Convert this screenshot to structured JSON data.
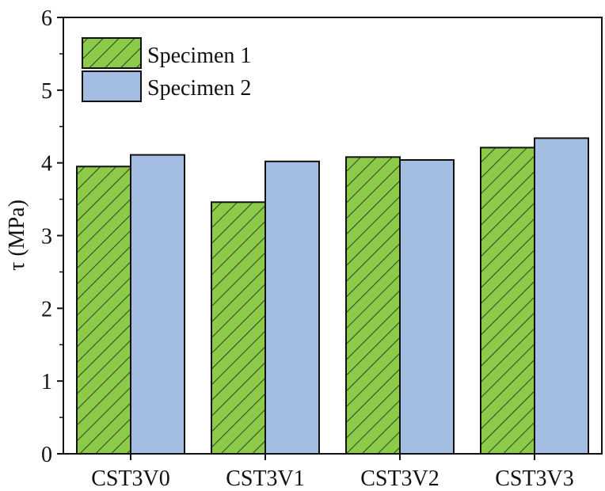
{
  "chart_data": {
    "type": "bar",
    "categories": [
      "CST3V0",
      "CST3V1",
      "CST3V2",
      "CST3V3"
    ],
    "series": [
      {
        "name": "Specimen 1",
        "values": [
          3.95,
          3.46,
          4.08,
          4.21
        ],
        "color": "#8ccb4a",
        "pattern": "hatch"
      },
      {
        "name": "Specimen 2",
        "values": [
          4.11,
          4.02,
          4.04,
          4.34
        ],
        "color": "#a3bde3",
        "pattern": "solid"
      }
    ],
    "title": "",
    "xlabel": "",
    "ylabel": "τ (MPa)",
    "ylim": [
      0,
      6
    ],
    "yticks": [
      "0",
      "1",
      "2",
      "3",
      "4",
      "5",
      "6"
    ],
    "grid": false,
    "legend_position": "top-left"
  }
}
